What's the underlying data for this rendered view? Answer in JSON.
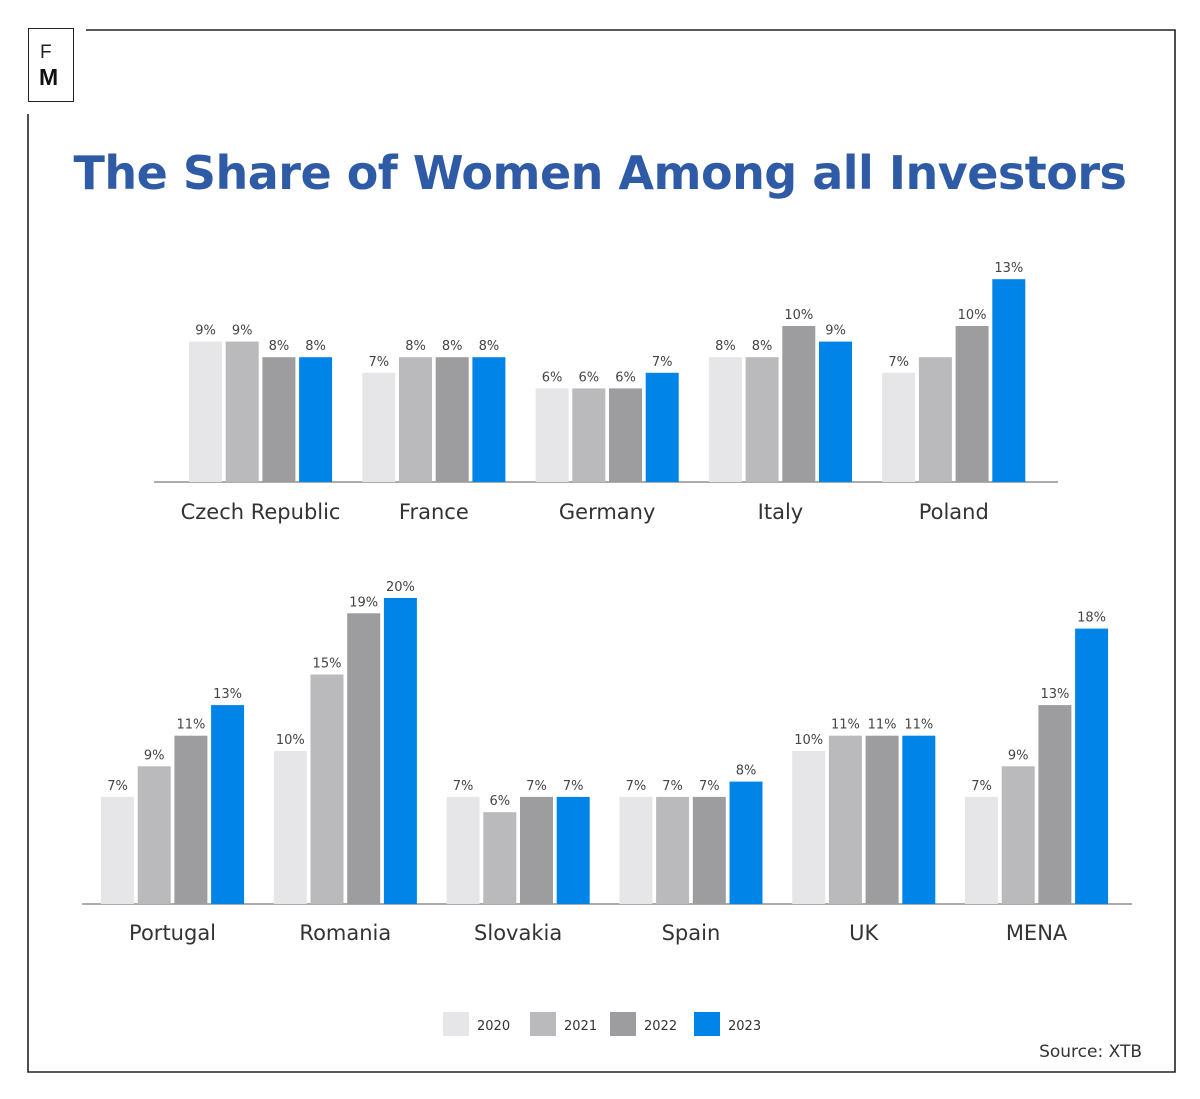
{
  "logo": {
    "top_letter": "F",
    "bottom_letter": "M"
  },
  "title": "The Share of Women Among all Investors",
  "source": "Source: XTB",
  "colors": {
    "2020": "#e6e6e8",
    "2021": "#bababc",
    "2022": "#9d9d9f",
    "2023": "#0084e8",
    "title": "#2e5aa6"
  },
  "legend": [
    "2020",
    "2021",
    "2022",
    "2023"
  ],
  "chart_data": [
    {
      "type": "bar",
      "title": "",
      "categories": [
        "Czech Republic",
        "France",
        "Germany",
        "Italy",
        "Poland"
      ],
      "series": [
        {
          "name": "2020",
          "values": [
            9,
            7,
            6,
            8,
            7
          ],
          "labels": [
            "9%",
            "7%",
            "6%",
            "8%",
            "7%"
          ]
        },
        {
          "name": "2021",
          "values": [
            9,
            8,
            6,
            8,
            8
          ],
          "labels": [
            "9%",
            "8%",
            "6%",
            "8%",
            ""
          ]
        },
        {
          "name": "2022",
          "values": [
            8,
            8,
            6,
            10,
            10
          ],
          "labels": [
            "8%",
            "8%",
            "6%",
            "10%",
            "10%"
          ]
        },
        {
          "name": "2023",
          "values": [
            8,
            8,
            7,
            9,
            13
          ],
          "labels": [
            "8%",
            "8%",
            "7%",
            "9%",
            "13%"
          ]
        }
      ],
      "ylim": [
        0,
        20
      ],
      "grid": false,
      "legend_position": "bottom"
    },
    {
      "type": "bar",
      "title": "",
      "categories": [
        "Portugal",
        "Romania",
        "Slovakia",
        "Spain",
        "UK",
        "MENA"
      ],
      "series": [
        {
          "name": "2020",
          "values": [
            7,
            10,
            7,
            7,
            10,
            7
          ],
          "labels": [
            "7%",
            "10%",
            "7%",
            "7%",
            "10%",
            "7%"
          ]
        },
        {
          "name": "2021",
          "values": [
            9,
            15,
            6,
            7,
            11,
            9
          ],
          "labels": [
            "9%",
            "15%",
            "6%",
            "7%",
            "11%",
            "9%"
          ]
        },
        {
          "name": "2022",
          "values": [
            11,
            19,
            7,
            7,
            11,
            13
          ],
          "labels": [
            "11%",
            "19%",
            "7%",
            "7%",
            "11%",
            "13%"
          ]
        },
        {
          "name": "2023",
          "values": [
            13,
            20,
            7,
            8,
            11,
            18
          ],
          "labels": [
            "13%",
            "20%",
            "7%",
            "8%",
            "11%",
            "18%"
          ]
        }
      ],
      "ylim": [
        0,
        20
      ],
      "grid": false,
      "legend_position": "bottom"
    }
  ]
}
